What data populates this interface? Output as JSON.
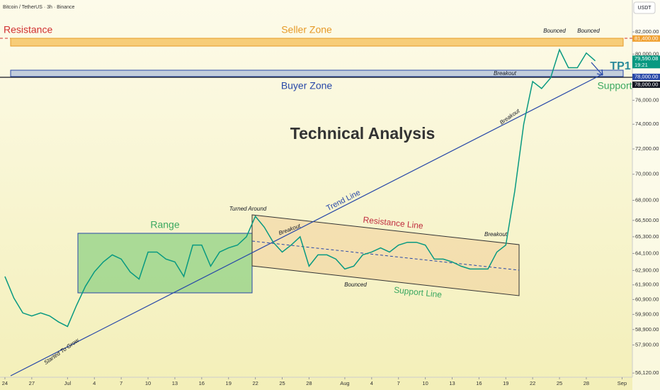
{
  "chart_data": {
    "type": "line",
    "title": "Bitcoin / TetherUS · 3h · Binance",
    "currency": "USDT",
    "log_scale": true,
    "color": "#089981",
    "x": [
      0,
      1,
      2,
      3,
      4,
      5,
      6,
      7,
      8,
      9,
      10,
      11,
      12,
      13,
      14,
      15,
      16,
      17,
      18,
      19,
      20,
      21,
      22,
      23,
      24,
      25,
      26,
      27,
      28,
      29,
      30,
      31,
      32,
      33,
      34,
      35,
      36,
      37,
      38,
      39,
      40,
      41,
      42,
      43,
      44,
      45,
      46,
      47,
      48,
      49,
      50,
      51,
      52,
      53,
      54,
      55,
      56,
      57,
      58,
      59,
      60,
      61,
      62,
      63,
      64,
      65,
      66
    ],
    "values": [
      62480,
      61000,
      60000,
      59800,
      60000,
      59800,
      59400,
      59100,
      60500,
      61800,
      62800,
      63500,
      64000,
      63700,
      62800,
      62300,
      64200,
      64200,
      63700,
      63500,
      62480,
      64700,
      64700,
      63200,
      64200,
      64500,
      64700,
      65300,
      66800,
      66000,
      64900,
      64200,
      64700,
      65300,
      63200,
      64000,
      64000,
      63700,
      63000,
      63200,
      64000,
      64200,
      64500,
      64200,
      64700,
      64900,
      64900,
      64700,
      63700,
      63700,
      63500,
      63200,
      63000,
      63000,
      63000,
      64200,
      64700,
      68700,
      74000,
      77600,
      77000,
      77900,
      80400,
      78800,
      78800,
      80100,
      79400
    ],
    "xlim": [
      -0.55,
      70.15
    ],
    "xticks": [
      {
        "value": 0,
        "label": "24"
      },
      {
        "value": 3,
        "label": "27"
      },
      {
        "value": 7,
        "label": "Jul"
      },
      {
        "value": 10,
        "label": "4"
      },
      {
        "value": 13,
        "label": "7"
      },
      {
        "value": 16,
        "label": "10"
      },
      {
        "value": 19,
        "label": "13"
      },
      {
        "value": 22,
        "label": "16"
      },
      {
        "value": 25,
        "label": "19"
      },
      {
        "value": 28,
        "label": "22"
      },
      {
        "value": 31,
        "label": "25"
      },
      {
        "value": 34,
        "label": "28"
      },
      {
        "value": 38,
        "label": "Aug"
      },
      {
        "value": 41,
        "label": "4"
      },
      {
        "value": 44,
        "label": "7"
      },
      {
        "value": 47,
        "label": "10"
      },
      {
        "value": 50,
        "label": "13"
      },
      {
        "value": 53,
        "label": "16"
      },
      {
        "value": 56,
        "label": "19"
      },
      {
        "value": 59,
        "label": "22"
      },
      {
        "value": 62,
        "label": "25"
      },
      {
        "value": 65,
        "label": "28"
      },
      {
        "value": 69,
        "label": "Sep"
      }
    ],
    "ylim": [
      55860,
      84960
    ],
    "yticks": [
      {
        "value": 82000,
        "label": "82,000.00"
      },
      {
        "value": 80000,
        "label": "80,000.00"
      },
      {
        "value": 76000,
        "label": "76,000.00"
      },
      {
        "value": 74000,
        "label": "74,000.00"
      },
      {
        "value": 72000,
        "label": "72,000.00"
      },
      {
        "value": 70000,
        "label": "70,000.00"
      },
      {
        "value": 68000,
        "label": "68,000.00"
      },
      {
        "value": 66500,
        "label": "66,500.00"
      },
      {
        "value": 65300,
        "label": "65,300.00"
      },
      {
        "value": 64100,
        "label": "64,100.00"
      },
      {
        "value": 62900,
        "label": "62,900.00"
      },
      {
        "value": 61900,
        "label": "61,900.00"
      },
      {
        "value": 60900,
        "label": "60,900.00"
      },
      {
        "value": 59900,
        "label": "59,900.00"
      },
      {
        "value": 58900,
        "label": "58,900.00"
      },
      {
        "value": 57900,
        "label": "57,900.00"
      },
      {
        "value": 56120,
        "label": "56,120.00"
      }
    ],
    "price_labels": [
      {
        "value": 81400,
        "label": "81,400.00",
        "color": "#f0a030"
      },
      {
        "value": 79590.08,
        "label": "79,590.08",
        "time": "19:21",
        "color": "#089981"
      },
      {
        "value": 78000,
        "label": "78,000.00",
        "color": "#2848a8"
      },
      {
        "value": 78000,
        "label": "78,000.00",
        "color": "#131722"
      }
    ],
    "annotations": [
      "Resistance",
      "Seller Zone",
      "Buyer Zone",
      "Support",
      "TP1",
      "Technical Analysis",
      "Range",
      "Turned Around",
      "Trend Line",
      "Resistance Line",
      "Support Line",
      "Bounced",
      "Bounced",
      "Bounced",
      "Breakout",
      "Breakout",
      "Breakout",
      "Breakout",
      "Started To Grow"
    ]
  }
}
